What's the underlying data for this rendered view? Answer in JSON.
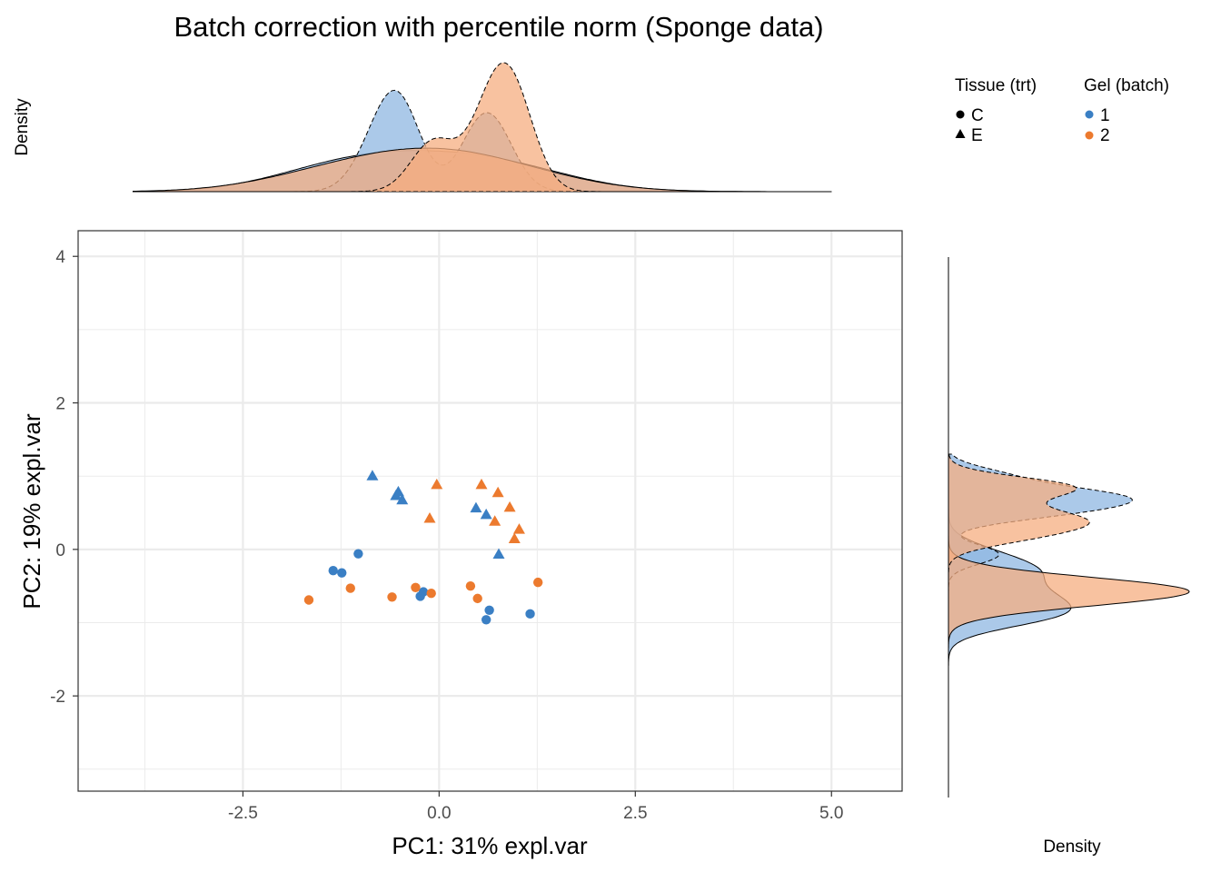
{
  "chart_data": {
    "type": "scatter",
    "title": "Batch correction with percentile norm (Sponge data)",
    "xlabel": "PC1: 31% expl.var",
    "ylabel": "PC2: 19% expl.var",
    "xlim": [
      -4.6,
      5.9
    ],
    "ylim": [
      -3.3,
      4.35
    ],
    "x_ticks": [
      -2.5,
      0,
      2.5,
      5
    ],
    "x_tick_labels": [
      "-2.5",
      "0.0",
      "2.5",
      "5.0"
    ],
    "y_ticks": [
      -2,
      0,
      2,
      4
    ],
    "y_tick_labels": [
      "-2",
      "0",
      "2",
      "4"
    ],
    "x_minor_grid": [
      -3.75,
      -1.25,
      1.25,
      3.75
    ],
    "y_minor_grid": [
      -3,
      -1,
      1,
      3
    ],
    "grid": true,
    "legend_position": "top-right",
    "legend": {
      "shape_title": "Tissue (trt)",
      "shape_items": [
        {
          "label": "C",
          "shape": "circle"
        },
        {
          "label": "E",
          "shape": "triangle"
        }
      ],
      "color_title": "Gel (batch)",
      "color_items": [
        {
          "label": "1",
          "color": "#3a7fc4"
        },
        {
          "label": "2",
          "color": "#ec7a2e"
        }
      ]
    },
    "top_density_ylabel": "Density",
    "right_density_xlabel": "Density",
    "points": [
      {
        "x": -0.85,
        "y": 1.0,
        "tissue": "E",
        "batch": "1"
      },
      {
        "x": -0.52,
        "y": 0.78,
        "tissue": "E",
        "batch": "1"
      },
      {
        "x": -0.55,
        "y": 0.73,
        "tissue": "E",
        "batch": "1"
      },
      {
        "x": -0.47,
        "y": 0.67,
        "tissue": "E",
        "batch": "1"
      },
      {
        "x": 0.47,
        "y": 0.56,
        "tissue": "E",
        "batch": "1"
      },
      {
        "x": 0.6,
        "y": 0.47,
        "tissue": "E",
        "batch": "1"
      },
      {
        "x": 0.76,
        "y": -0.07,
        "tissue": "E",
        "batch": "1"
      },
      {
        "x": -1.03,
        "y": -0.06,
        "tissue": "C",
        "batch": "1"
      },
      {
        "x": -1.35,
        "y": -0.29,
        "tissue": "C",
        "batch": "1"
      },
      {
        "x": -1.24,
        "y": -0.32,
        "tissue": "C",
        "batch": "1"
      },
      {
        "x": -0.2,
        "y": -0.58,
        "tissue": "C",
        "batch": "1"
      },
      {
        "x": -0.24,
        "y": -0.64,
        "tissue": "C",
        "batch": "1"
      },
      {
        "x": 0.64,
        "y": -0.83,
        "tissue": "C",
        "batch": "1"
      },
      {
        "x": 0.6,
        "y": -0.96,
        "tissue": "C",
        "batch": "1"
      },
      {
        "x": 1.16,
        "y": -0.88,
        "tissue": "C",
        "batch": "1"
      },
      {
        "x": -0.03,
        "y": 0.88,
        "tissue": "E",
        "batch": "2"
      },
      {
        "x": 0.54,
        "y": 0.88,
        "tissue": "E",
        "batch": "2"
      },
      {
        "x": 0.75,
        "y": 0.77,
        "tissue": "E",
        "batch": "2"
      },
      {
        "x": 0.9,
        "y": 0.57,
        "tissue": "E",
        "batch": "2"
      },
      {
        "x": -0.12,
        "y": 0.42,
        "tissue": "E",
        "batch": "2"
      },
      {
        "x": 0.71,
        "y": 0.38,
        "tissue": "E",
        "batch": "2"
      },
      {
        "x": 1.02,
        "y": 0.27,
        "tissue": "E",
        "batch": "2"
      },
      {
        "x": 0.96,
        "y": 0.14,
        "tissue": "E",
        "batch": "2"
      },
      {
        "x": -1.13,
        "y": -0.53,
        "tissue": "C",
        "batch": "2"
      },
      {
        "x": -0.3,
        "y": -0.52,
        "tissue": "C",
        "batch": "2"
      },
      {
        "x": -0.1,
        "y": -0.6,
        "tissue": "C",
        "batch": "2"
      },
      {
        "x": 0.4,
        "y": -0.5,
        "tissue": "C",
        "batch": "2"
      },
      {
        "x": 0.49,
        "y": -0.67,
        "tissue": "C",
        "batch": "2"
      },
      {
        "x": 1.26,
        "y": -0.45,
        "tissue": "C",
        "batch": "2"
      },
      {
        "x": -0.6,
        "y": -0.65,
        "tissue": "C",
        "batch": "2"
      },
      {
        "x": -1.66,
        "y": -0.69,
        "tissue": "C",
        "batch": "2"
      }
    ],
    "colors": {
      "batch_1": "#3a7fc4",
      "batch_2": "#ec7a2e",
      "batch_1_fill": "#8fb7e1",
      "batch_2_fill": "#f5ad80",
      "grid": "#ebebeb",
      "panel_border": "#333333"
    }
  }
}
